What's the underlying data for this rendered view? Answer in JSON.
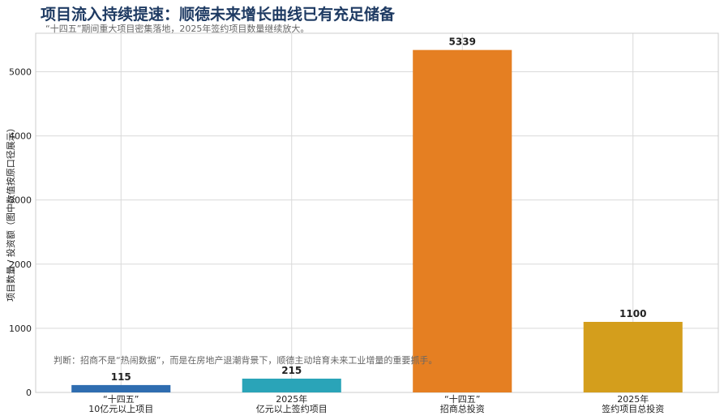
{
  "chart_data": {
    "type": "bar",
    "title": "项目流入持续提速：顺德未来增长曲线已有充足储备",
    "subtitle": "“十四五”期间重大项目密集落地，2025年签约项目数量继续放大。",
    "ylabel": "项目数量 / 投资额（图中数值按原口径展示）",
    "xlabel": "",
    "categories": [
      [
        "“十四五”",
        "10亿元以上项目"
      ],
      [
        "2025年",
        "亿元以上签约项目"
      ],
      [
        "“十四五”",
        "招商总投资"
      ],
      [
        "2025年",
        "签约项目总投资"
      ]
    ],
    "values": [
      115,
      215,
      5339,
      1100
    ],
    "value_labels": [
      "115",
      "215",
      "5339",
      "1100"
    ],
    "bar_colors": [
      "#2f6db0",
      "#2aa4b8",
      "#e57f22",
      "#d49e1c"
    ],
    "ylim": [
      0,
      5600
    ],
    "yticks": [
      0,
      1000,
      2000,
      3000,
      4000,
      5000
    ],
    "ytick_labels": [
      "0",
      "1000",
      "2000",
      "3000",
      "4000",
      "5000"
    ],
    "grid": true,
    "annotation": "判断：招商不是“热闹数据”，而是在房地产退潮背景下，顺德主动培育未来工业增量的重要抓手。"
  }
}
